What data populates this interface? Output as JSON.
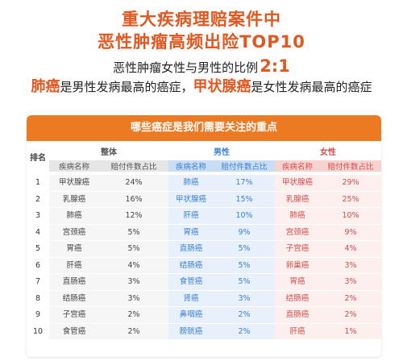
{
  "header": {
    "title_line1": "重大疾病理赔案件中",
    "title_line2": "恶性肿瘤高频出险TOP10",
    "ratio_text": "恶性肿瘤女性与男性的比例",
    "ratio_value": "2:1",
    "summary_male_cancer": "肺癌",
    "summary_male_text": "是男性发病最高的癌症，",
    "summary_female_cancer": "甲状腺癌",
    "summary_female_text": "是女性发病最高的癌症"
  },
  "table": {
    "banner": "哪些癌症是我们需要关注的重点",
    "rank_header": "排名",
    "groups": {
      "overall": "整体",
      "male": "男性",
      "female": "女性"
    },
    "col_name": "疾病名称",
    "col_ratio": "赔付件数占比",
    "rows": [
      {
        "rank": "1",
        "overall_name": "甲状腺癌",
        "overall_ratio": "24%",
        "male_name": "肺癌",
        "male_ratio": "17%",
        "female_name": "甲状腺癌",
        "female_ratio": "29%"
      },
      {
        "rank": "2",
        "overall_name": "乳腺癌",
        "overall_ratio": "16%",
        "male_name": "甲状腺癌",
        "male_ratio": "15%",
        "female_name": "乳腺癌",
        "female_ratio": "25%"
      },
      {
        "rank": "3",
        "overall_name": "肺癌",
        "overall_ratio": "12%",
        "male_name": "肝癌",
        "male_ratio": "10%",
        "female_name": "肺癌",
        "female_ratio": "10%"
      },
      {
        "rank": "4",
        "overall_name": "宫颈癌",
        "overall_ratio": "5%",
        "male_name": "胃癌",
        "male_ratio": "9%",
        "female_name": "宫颈癌",
        "female_ratio": "9%"
      },
      {
        "rank": "5",
        "overall_name": "胃癌",
        "overall_ratio": "5%",
        "male_name": "直肠癌",
        "male_ratio": "5%",
        "female_name": "子宫癌",
        "female_ratio": "4%"
      },
      {
        "rank": "6",
        "overall_name": "肝癌",
        "overall_ratio": "4%",
        "male_name": "结肠癌",
        "male_ratio": "5%",
        "female_name": "卵巢癌",
        "female_ratio": "3%"
      },
      {
        "rank": "7",
        "overall_name": "直肠癌",
        "overall_ratio": "3%",
        "male_name": "食管癌",
        "male_ratio": "5%",
        "female_name": "胃癌",
        "female_ratio": "3%"
      },
      {
        "rank": "8",
        "overall_name": "结肠癌",
        "overall_ratio": "3%",
        "male_name": "肾癌",
        "male_ratio": "3%",
        "female_name": "结肠癌",
        "female_ratio": "2%"
      },
      {
        "rank": "9",
        "overall_name": "子宫癌",
        "overall_ratio": "2%",
        "male_name": "鼻咽癌",
        "male_ratio": "2%",
        "female_name": "直肠癌",
        "female_ratio": "2%"
      },
      {
        "rank": "10",
        "overall_name": "食管癌",
        "overall_ratio": "2%",
        "male_name": "膀胱癌",
        "male_ratio": "2%",
        "female_name": "肝癌",
        "female_ratio": "1%"
      }
    ]
  },
  "colors": {
    "accent_orange": "#e2571f",
    "banner_orange": "#ec7a22",
    "male_blue": "#3c7fd1",
    "female_red": "#d24e4e"
  }
}
